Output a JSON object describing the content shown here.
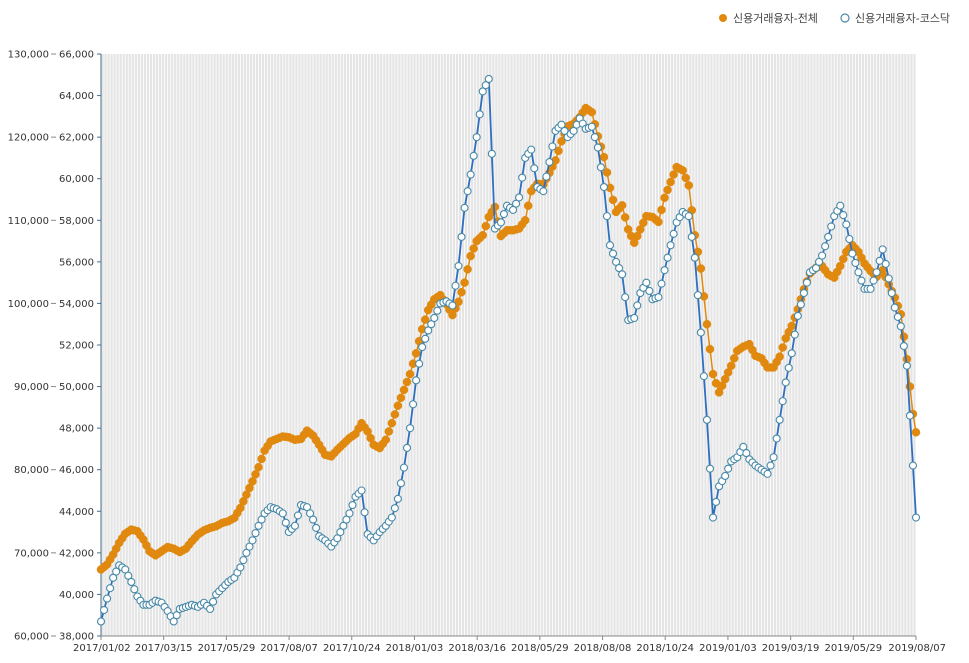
{
  "chart_data": {
    "type": "line",
    "title": "",
    "xlabel": "",
    "ylabel": "",
    "legend_position": "top-right",
    "grid": true,
    "y_left": {
      "min": 60000,
      "max": 130000,
      "ticks": [
        "60,000",
        "70,000",
        "80,000",
        "90,000",
        "100,000",
        "110,000",
        "120,000",
        "130,000"
      ]
    },
    "y_right": {
      "min": 38000,
      "max": 66000,
      "ticks": [
        "38,000",
        "40,000",
        "42,000",
        "44,000",
        "46,000",
        "48,000",
        "50,000",
        "52,000",
        "54,000",
        "56,000",
        "58,000",
        "60,000",
        "62,000",
        "64,000",
        "66,000"
      ]
    },
    "x_ticks": [
      "2017/01/02",
      "2017/03/15",
      "2017/05/29",
      "2017/08/07",
      "2017/10/24",
      "2018/01/03",
      "2018/03/16",
      "2018/05/29",
      "2018/08/08",
      "2018/10/24",
      "2019/01/03",
      "2019/03/19",
      "2019/05/29",
      "2019/08/07"
    ],
    "series": [
      {
        "name": "신용거래융자-전체",
        "axis": "left",
        "color": "#e0890e",
        "marker": "filled-circle",
        "values": [
          [
            0,
            68000
          ],
          [
            2,
            68600
          ],
          [
            4,
            69800
          ],
          [
            6,
            71200
          ],
          [
            8,
            72300
          ],
          [
            10,
            72800
          ],
          [
            12,
            72600
          ],
          [
            14,
            71600
          ],
          [
            16,
            70200
          ],
          [
            18,
            69700
          ],
          [
            20,
            70200
          ],
          [
            22,
            70700
          ],
          [
            24,
            70500
          ],
          [
            26,
            70100
          ],
          [
            28,
            70500
          ],
          [
            30,
            71400
          ],
          [
            32,
            72200
          ],
          [
            34,
            72700
          ],
          [
            36,
            73000
          ],
          [
            38,
            73200
          ],
          [
            40,
            73600
          ],
          [
            42,
            73800
          ],
          [
            44,
            74200
          ],
          [
            46,
            75400
          ],
          [
            48,
            77000
          ],
          [
            50,
            78600
          ],
          [
            52,
            80300
          ],
          [
            54,
            82300
          ],
          [
            56,
            83400
          ],
          [
            58,
            83700
          ],
          [
            60,
            84000
          ],
          [
            62,
            83900
          ],
          [
            64,
            83600
          ],
          [
            66,
            83700
          ],
          [
            68,
            84700
          ],
          [
            70,
            84100
          ],
          [
            72,
            83000
          ],
          [
            74,
            81800
          ],
          [
            76,
            81600
          ],
          [
            78,
            82400
          ],
          [
            80,
            83100
          ],
          [
            82,
            83800
          ],
          [
            84,
            84300
          ],
          [
            86,
            85600
          ],
          [
            88,
            84600
          ],
          [
            90,
            83000
          ],
          [
            92,
            82600
          ],
          [
            94,
            83600
          ],
          [
            96,
            85600
          ],
          [
            98,
            87700
          ],
          [
            100,
            89600
          ],
          [
            102,
            91500
          ],
          [
            104,
            94000
          ],
          [
            106,
            96900
          ],
          [
            108,
            99200
          ],
          [
            110,
            100500
          ],
          [
            112,
            101000
          ],
          [
            114,
            99900
          ],
          [
            116,
            98600
          ],
          [
            118,
            100200
          ],
          [
            120,
            102500
          ],
          [
            122,
            105700
          ],
          [
            124,
            107500
          ],
          [
            126,
            108200
          ],
          [
            128,
            110400
          ],
          [
            130,
            111600
          ],
          [
            132,
            108100
          ],
          [
            134,
            108800
          ],
          [
            136,
            108800
          ],
          [
            138,
            109000
          ],
          [
            140,
            110000
          ],
          [
            142,
            113500
          ],
          [
            144,
            114400
          ],
          [
            146,
            114300
          ],
          [
            148,
            115700
          ],
          [
            150,
            117200
          ],
          [
            152,
            119500
          ],
          [
            154,
            121300
          ],
          [
            156,
            121600
          ],
          [
            158,
            122400
          ],
          [
            160,
            123500
          ],
          [
            162,
            123000
          ],
          [
            164,
            120100
          ],
          [
            166,
            117600
          ],
          [
            168,
            113900
          ],
          [
            170,
            111000
          ],
          [
            172,
            111800
          ],
          [
            174,
            108900
          ],
          [
            176,
            107300
          ],
          [
            178,
            108900
          ],
          [
            180,
            110500
          ],
          [
            182,
            110400
          ],
          [
            184,
            109800
          ],
          [
            186,
            112700
          ],
          [
            188,
            114600
          ],
          [
            190,
            116400
          ],
          [
            192,
            116000
          ],
          [
            194,
            114200
          ],
          [
            196,
            108200
          ],
          [
            198,
            104200
          ],
          [
            200,
            97500
          ],
          [
            202,
            91500
          ],
          [
            204,
            89300
          ],
          [
            206,
            90900
          ],
          [
            208,
            92500
          ],
          [
            210,
            94300
          ],
          [
            212,
            94800
          ],
          [
            214,
            95100
          ],
          [
            216,
            93700
          ],
          [
            218,
            93400
          ],
          [
            220,
            92300
          ],
          [
            222,
            92300
          ],
          [
            224,
            93600
          ],
          [
            226,
            95800
          ],
          [
            228,
            97300
          ],
          [
            230,
            99300
          ],
          [
            232,
            101700
          ],
          [
            234,
            103600
          ],
          [
            236,
            104300
          ],
          [
            238,
            104500
          ],
          [
            240,
            103500
          ],
          [
            242,
            103100
          ],
          [
            244,
            104500
          ],
          [
            246,
            106200
          ],
          [
            248,
            107000
          ],
          [
            250,
            106200
          ],
          [
            252,
            104800
          ],
          [
            254,
            103900
          ],
          [
            256,
            103200
          ],
          [
            258,
            104000
          ],
          [
            260,
            102300
          ],
          [
            262,
            100700
          ],
          [
            264,
            98700
          ],
          [
            266,
            93300
          ],
          [
            268,
            86700
          ],
          [
            269,
            84500
          ]
        ]
      },
      {
        "name": "신용거래융자-코스닥",
        "axis": "right",
        "color": "#2f6fbf",
        "marker": "hollow-circle",
        "values": [
          [
            0,
            38700
          ],
          [
            2,
            39800
          ],
          [
            4,
            40800
          ],
          [
            6,
            41400
          ],
          [
            8,
            41200
          ],
          [
            10,
            40600
          ],
          [
            12,
            39900
          ],
          [
            14,
            39500
          ],
          [
            16,
            39500
          ],
          [
            18,
            39700
          ],
          [
            20,
            39600
          ],
          [
            22,
            39200
          ],
          [
            24,
            38700
          ],
          [
            26,
            39300
          ],
          [
            28,
            39400
          ],
          [
            30,
            39500
          ],
          [
            32,
            39400
          ],
          [
            34,
            39600
          ],
          [
            36,
            39300
          ],
          [
            38,
            40000
          ],
          [
            40,
            40300
          ],
          [
            42,
            40600
          ],
          [
            44,
            40800
          ],
          [
            46,
            41300
          ],
          [
            48,
            42000
          ],
          [
            50,
            42600
          ],
          [
            52,
            43300
          ],
          [
            54,
            43900
          ],
          [
            56,
            44200
          ],
          [
            58,
            44100
          ],
          [
            60,
            43900
          ],
          [
            62,
            43000
          ],
          [
            64,
            43300
          ],
          [
            66,
            44300
          ],
          [
            68,
            44200
          ],
          [
            70,
            43600
          ],
          [
            72,
            42800
          ],
          [
            74,
            42600
          ],
          [
            76,
            42300
          ],
          [
            78,
            42700
          ],
          [
            80,
            43300
          ],
          [
            82,
            43900
          ],
          [
            84,
            44700
          ],
          [
            86,
            45000
          ],
          [
            88,
            42900
          ],
          [
            90,
            42600
          ],
          [
            92,
            43000
          ],
          [
            94,
            43300
          ],
          [
            96,
            43700
          ],
          [
            98,
            44600
          ],
          [
            100,
            46100
          ],
          [
            102,
            48000
          ],
          [
            104,
            50300
          ],
          [
            106,
            51900
          ],
          [
            108,
            52700
          ],
          [
            110,
            53300
          ],
          [
            112,
            54000
          ],
          [
            114,
            54100
          ],
          [
            116,
            53900
          ],
          [
            118,
            55800
          ],
          [
            120,
            58600
          ],
          [
            122,
            60200
          ],
          [
            124,
            62000
          ],
          [
            126,
            64200
          ],
          [
            128,
            64800
          ],
          [
            130,
            57600
          ],
          [
            132,
            57900
          ],
          [
            134,
            58700
          ],
          [
            136,
            58500
          ],
          [
            138,
            59100
          ],
          [
            140,
            61000
          ],
          [
            142,
            61400
          ],
          [
            144,
            59600
          ],
          [
            146,
            59400
          ],
          [
            148,
            60800
          ],
          [
            150,
            62300
          ],
          [
            152,
            62600
          ],
          [
            154,
            62000
          ],
          [
            156,
            62300
          ],
          [
            158,
            62900
          ],
          [
            160,
            62400
          ],
          [
            162,
            62500
          ],
          [
            164,
            61500
          ],
          [
            166,
            59600
          ],
          [
            168,
            56800
          ],
          [
            170,
            56000
          ],
          [
            172,
            55400
          ],
          [
            174,
            53200
          ],
          [
            176,
            53300
          ],
          [
            178,
            54500
          ],
          [
            180,
            55000
          ],
          [
            182,
            54200
          ],
          [
            184,
            54300
          ],
          [
            186,
            55600
          ],
          [
            188,
            56800
          ],
          [
            190,
            57900
          ],
          [
            192,
            58400
          ],
          [
            194,
            58200
          ],
          [
            196,
            56200
          ],
          [
            198,
            52600
          ],
          [
            200,
            48400
          ],
          [
            202,
            43700
          ],
          [
            204,
            45200
          ],
          [
            206,
            45700
          ],
          [
            208,
            46400
          ],
          [
            210,
            46600
          ],
          [
            212,
            47100
          ],
          [
            214,
            46500
          ],
          [
            216,
            46200
          ],
          [
            218,
            46000
          ],
          [
            220,
            45800
          ],
          [
            222,
            46600
          ],
          [
            224,
            48400
          ],
          [
            226,
            50200
          ],
          [
            228,
            51600
          ],
          [
            230,
            53400
          ],
          [
            232,
            54500
          ],
          [
            234,
            55500
          ],
          [
            236,
            55700
          ],
          [
            238,
            56300
          ],
          [
            240,
            57200
          ],
          [
            242,
            58200
          ],
          [
            244,
            58700
          ],
          [
            246,
            57800
          ],
          [
            248,
            56400
          ],
          [
            250,
            55500
          ],
          [
            252,
            54700
          ],
          [
            254,
            54700
          ],
          [
            256,
            55500
          ],
          [
            258,
            56600
          ],
          [
            260,
            55200
          ],
          [
            262,
            53800
          ],
          [
            264,
            52900
          ],
          [
            266,
            51000
          ],
          [
            268,
            46200
          ],
          [
            269,
            43700
          ]
        ]
      }
    ]
  }
}
